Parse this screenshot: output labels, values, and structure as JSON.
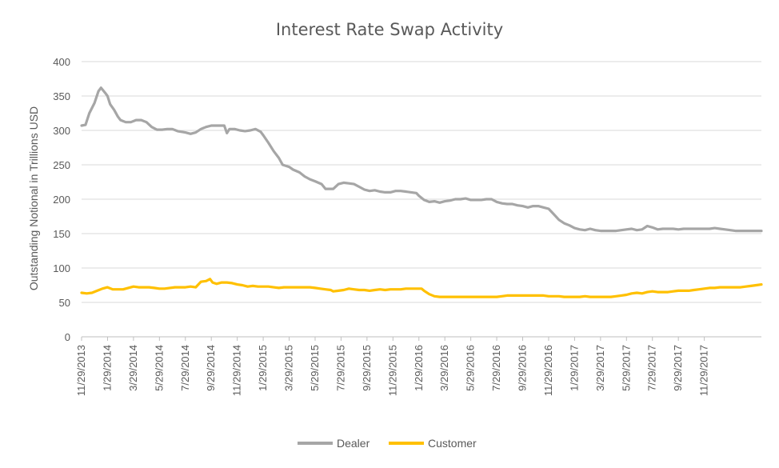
{
  "chart_data": {
    "type": "line",
    "title": "Interest Rate Swap Activity",
    "xlabel": "",
    "ylabel": "Outstanding Notional in Trillions USD",
    "ylim": [
      0,
      400
    ],
    "yticks": [
      0,
      50,
      100,
      150,
      200,
      250,
      300,
      350,
      400
    ],
    "grid": true,
    "legend": "bottom",
    "x_tick_labels": [
      "11/29/2013",
      "1/29/2014",
      "3/29/2014",
      "5/29/2014",
      "7/29/2014",
      "9/29/2014",
      "11/29/2014",
      "1/29/2015",
      "3/29/2015",
      "5/29/2015",
      "7/29/2015",
      "9/29/2015",
      "11/29/2015",
      "1/29/2016",
      "3/29/2016",
      "5/29/2016",
      "7/29/2016",
      "9/29/2016",
      "11/29/2016",
      "1/29/2017",
      "3/29/2017",
      "5/29/2017",
      "7/29/2017",
      "9/29/2017",
      "11/29/2017"
    ],
    "x_months": [
      0,
      24.5
    ],
    "series": [
      {
        "name": "Dealer",
        "color": "#a6a6a6",
        "points": [
          [
            0,
            307
          ],
          [
            0.3,
            308
          ],
          [
            0.6,
            325
          ],
          [
            1.0,
            340
          ],
          [
            1.3,
            357
          ],
          [
            1.5,
            362
          ],
          [
            1.8,
            355
          ],
          [
            2.0,
            350
          ],
          [
            2.2,
            338
          ],
          [
            2.5,
            330
          ],
          [
            2.8,
            320
          ],
          [
            3.0,
            315
          ],
          [
            3.4,
            312
          ],
          [
            3.8,
            312
          ],
          [
            4.2,
            315
          ],
          [
            4.6,
            315
          ],
          [
            5.0,
            312
          ],
          [
            5.4,
            305
          ],
          [
            5.8,
            301
          ],
          [
            6.2,
            301
          ],
          [
            6.6,
            302
          ],
          [
            7.0,
            302
          ],
          [
            7.4,
            299
          ],
          [
            8.0,
            297
          ],
          [
            8.4,
            295
          ],
          [
            8.8,
            297
          ],
          [
            9.2,
            302
          ],
          [
            9.6,
            305
          ],
          [
            10.0,
            307
          ],
          [
            10.4,
            307
          ],
          [
            10.8,
            307
          ],
          [
            11.0,
            307
          ],
          [
            11.2,
            296
          ],
          [
            11.4,
            302
          ],
          [
            11.8,
            302
          ],
          [
            12.2,
            300
          ],
          [
            12.6,
            299
          ],
          [
            13.0,
            300
          ],
          [
            13.4,
            302
          ],
          [
            13.8,
            298
          ],
          [
            14.0,
            293
          ],
          [
            14.4,
            282
          ],
          [
            14.8,
            270
          ],
          [
            15.2,
            260
          ],
          [
            15.5,
            250
          ],
          [
            16.0,
            247
          ],
          [
            16.3,
            243
          ],
          [
            16.8,
            239
          ],
          [
            17.2,
            233
          ],
          [
            17.6,
            229
          ],
          [
            18.0,
            226
          ],
          [
            18.5,
            222
          ],
          [
            18.8,
            215
          ],
          [
            19.4,
            215
          ],
          [
            19.8,
            222
          ],
          [
            20.2,
            224
          ],
          [
            20.6,
            223
          ],
          [
            21.0,
            222
          ],
          [
            21.4,
            218
          ],
          [
            21.8,
            214
          ],
          [
            22.2,
            212
          ],
          [
            22.6,
            213
          ],
          [
            23.0,
            211
          ],
          [
            23.4,
            210
          ],
          [
            23.8,
            210
          ],
          [
            24.2,
            212
          ],
          [
            24.6,
            212
          ],
          [
            25.0,
            211
          ],
          [
            25.4,
            210
          ],
          [
            25.8,
            209
          ],
          [
            26.0,
            205
          ],
          [
            26.4,
            199
          ],
          [
            26.8,
            196
          ],
          [
            27.2,
            197
          ],
          [
            27.6,
            195
          ],
          [
            28.0,
            197
          ],
          [
            28.4,
            198
          ],
          [
            28.8,
            200
          ],
          [
            29.2,
            200
          ],
          [
            29.6,
            201
          ],
          [
            30.0,
            199
          ],
          [
            30.4,
            199
          ],
          [
            30.8,
            199
          ],
          [
            31.2,
            200
          ],
          [
            31.6,
            200
          ],
          [
            32.0,
            196
          ],
          [
            32.4,
            194
          ],
          [
            32.8,
            193
          ],
          [
            33.2,
            193
          ],
          [
            33.6,
            191
          ],
          [
            34.0,
            190
          ],
          [
            34.4,
            188
          ],
          [
            34.8,
            190
          ],
          [
            35.2,
            190
          ],
          [
            35.6,
            188
          ],
          [
            36.0,
            186
          ],
          [
            36.4,
            178
          ],
          [
            36.8,
            170
          ],
          [
            37.2,
            165
          ],
          [
            37.6,
            162
          ],
          [
            38.0,
            158
          ],
          [
            38.4,
            156
          ],
          [
            38.8,
            155
          ],
          [
            39.2,
            157
          ],
          [
            39.6,
            155
          ],
          [
            40.0,
            154
          ],
          [
            40.4,
            154
          ],
          [
            40.8,
            154
          ],
          [
            41.2,
            154
          ],
          [
            41.6,
            155
          ],
          [
            42.0,
            156
          ],
          [
            42.4,
            157
          ],
          [
            42.8,
            155
          ],
          [
            43.2,
            156
          ],
          [
            43.6,
            161
          ],
          [
            44.0,
            159
          ],
          [
            44.4,
            156
          ],
          [
            44.8,
            157
          ],
          [
            45.2,
            157
          ],
          [
            45.6,
            157
          ],
          [
            46.0,
            156
          ],
          [
            46.4,
            157
          ],
          [
            46.8,
            157
          ],
          [
            47.2,
            157
          ],
          [
            47.6,
            157
          ],
          [
            48.0,
            157
          ],
          [
            48.4,
            157
          ],
          [
            48.8,
            158
          ],
          [
            49.2,
            157
          ],
          [
            49.6,
            156
          ],
          [
            50.0,
            155
          ],
          [
            50.4,
            154
          ],
          [
            50.8,
            154
          ],
          [
            51.2,
            154
          ],
          [
            51.6,
            154
          ],
          [
            52.0,
            154
          ],
          [
            52.4,
            154
          ]
        ]
      },
      {
        "name": "Customer",
        "color": "#ffc000",
        "points": [
          [
            0,
            64
          ],
          [
            0.4,
            63
          ],
          [
            0.8,
            64
          ],
          [
            1.2,
            67
          ],
          [
            1.6,
            70
          ],
          [
            2.0,
            72
          ],
          [
            2.4,
            69
          ],
          [
            2.8,
            69
          ],
          [
            3.2,
            69
          ],
          [
            3.6,
            71
          ],
          [
            4.0,
            73
          ],
          [
            4.4,
            72
          ],
          [
            4.8,
            72
          ],
          [
            5.2,
            72
          ],
          [
            5.6,
            71
          ],
          [
            6.0,
            70
          ],
          [
            6.4,
            70
          ],
          [
            6.8,
            71
          ],
          [
            7.2,
            72
          ],
          [
            7.6,
            72
          ],
          [
            8.0,
            72
          ],
          [
            8.4,
            73
          ],
          [
            8.8,
            72
          ],
          [
            9.0,
            76
          ],
          [
            9.2,
            80
          ],
          [
            9.6,
            81
          ],
          [
            9.9,
            84
          ],
          [
            10.1,
            79
          ],
          [
            10.4,
            77
          ],
          [
            10.8,
            79
          ],
          [
            11.2,
            79
          ],
          [
            11.6,
            78
          ],
          [
            12.0,
            76
          ],
          [
            12.4,
            75
          ],
          [
            12.8,
            73
          ],
          [
            13.2,
            74
          ],
          [
            13.6,
            73
          ],
          [
            14.0,
            73
          ],
          [
            14.4,
            73
          ],
          [
            14.8,
            72
          ],
          [
            15.2,
            71
          ],
          [
            15.6,
            72
          ],
          [
            16.0,
            72
          ],
          [
            16.4,
            72
          ],
          [
            16.8,
            72
          ],
          [
            17.2,
            72
          ],
          [
            17.6,
            72
          ],
          [
            18.0,
            71
          ],
          [
            18.4,
            70
          ],
          [
            18.8,
            69
          ],
          [
            19.2,
            68
          ],
          [
            19.4,
            66
          ],
          [
            19.8,
            67
          ],
          [
            20.2,
            68
          ],
          [
            20.6,
            70
          ],
          [
            21.0,
            69
          ],
          [
            21.4,
            68
          ],
          [
            21.8,
            68
          ],
          [
            22.2,
            67
          ],
          [
            22.6,
            68
          ],
          [
            23.0,
            69
          ],
          [
            23.4,
            68
          ],
          [
            23.8,
            69
          ],
          [
            24.2,
            69
          ],
          [
            24.6,
            69
          ],
          [
            25.0,
            70
          ],
          [
            25.4,
            70
          ],
          [
            25.8,
            70
          ],
          [
            26.2,
            70
          ],
          [
            26.4,
            67
          ],
          [
            26.8,
            62
          ],
          [
            27.2,
            59
          ],
          [
            27.6,
            58
          ],
          [
            28.0,
            58
          ],
          [
            28.4,
            58
          ],
          [
            28.8,
            58
          ],
          [
            29.2,
            58
          ],
          [
            29.6,
            58
          ],
          [
            30.0,
            58
          ],
          [
            30.4,
            58
          ],
          [
            30.8,
            58
          ],
          [
            31.2,
            58
          ],
          [
            31.6,
            58
          ],
          [
            32.0,
            58
          ],
          [
            32.4,
            59
          ],
          [
            32.8,
            60
          ],
          [
            33.2,
            60
          ],
          [
            33.6,
            60
          ],
          [
            34.0,
            60
          ],
          [
            34.4,
            60
          ],
          [
            34.8,
            60
          ],
          [
            35.2,
            60
          ],
          [
            35.6,
            60
          ],
          [
            36.0,
            59
          ],
          [
            36.4,
            59
          ],
          [
            36.8,
            59
          ],
          [
            37.2,
            58
          ],
          [
            37.6,
            58
          ],
          [
            38.0,
            58
          ],
          [
            38.4,
            58
          ],
          [
            38.8,
            59
          ],
          [
            39.2,
            58
          ],
          [
            39.6,
            58
          ],
          [
            40.0,
            58
          ],
          [
            40.4,
            58
          ],
          [
            40.8,
            58
          ],
          [
            41.2,
            59
          ],
          [
            41.6,
            60
          ],
          [
            42.0,
            61
          ],
          [
            42.4,
            63
          ],
          [
            42.8,
            64
          ],
          [
            43.2,
            63
          ],
          [
            43.6,
            65
          ],
          [
            44.0,
            66
          ],
          [
            44.4,
            65
          ],
          [
            44.8,
            65
          ],
          [
            45.2,
            65
          ],
          [
            45.6,
            66
          ],
          [
            46.0,
            67
          ],
          [
            46.4,
            67
          ],
          [
            46.8,
            67
          ],
          [
            47.2,
            68
          ],
          [
            47.6,
            69
          ],
          [
            48.0,
            70
          ],
          [
            48.4,
            71
          ],
          [
            48.8,
            71
          ],
          [
            49.2,
            72
          ],
          [
            49.6,
            72
          ],
          [
            50.0,
            72
          ],
          [
            50.4,
            72
          ],
          [
            50.8,
            72
          ],
          [
            51.2,
            73
          ],
          [
            51.6,
            74
          ],
          [
            52.0,
            75
          ],
          [
            52.4,
            76
          ]
        ]
      }
    ]
  }
}
